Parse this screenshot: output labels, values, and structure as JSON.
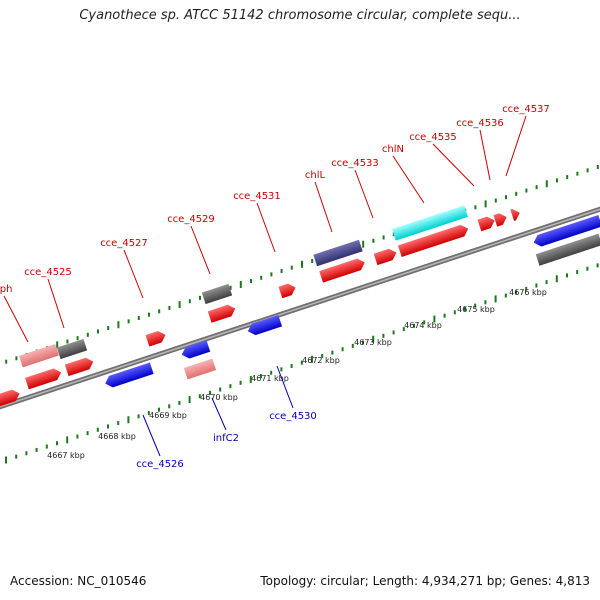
{
  "title": "Cyanothece sp. ATCC 51142 chromosome circular, complete sequ...",
  "footer": {
    "accession": "Accession: NC_010546",
    "summary": "Topology: circular; Length: 4,934,271 bp; Genes: 4,813"
  },
  "colors": {
    "forward_gene": "#ff0000",
    "reverse_gene": "#0000ff",
    "rna": "#f08080",
    "other": "#606060",
    "highlight_a": "#00ffff",
    "highlight_b": "#404090",
    "tick": "#1a7a1a",
    "backbone": "#808080",
    "forward_label": "#cc0000",
    "reverse_label": "#0000bb"
  },
  "scale_labels": [
    "4667 kbp",
    "4668 kbp",
    "4669 kbp",
    "4670 kbp",
    "4671 kbp",
    "4672 kbp",
    "4673 kbp",
    "4674 kbp",
    "4675 kbp",
    "4676 kbp"
  ],
  "upper_labels": [
    "rph",
    "cce_4525",
    "cce_4527",
    "cce_4529",
    "cce_4531",
    "chlL",
    "cce_4533",
    "chlN",
    "cce_4535",
    "cce_4536",
    "cce_4537"
  ],
  "lower_labels": [
    "cce_4526",
    "infC2",
    "cce_4530"
  ]
}
